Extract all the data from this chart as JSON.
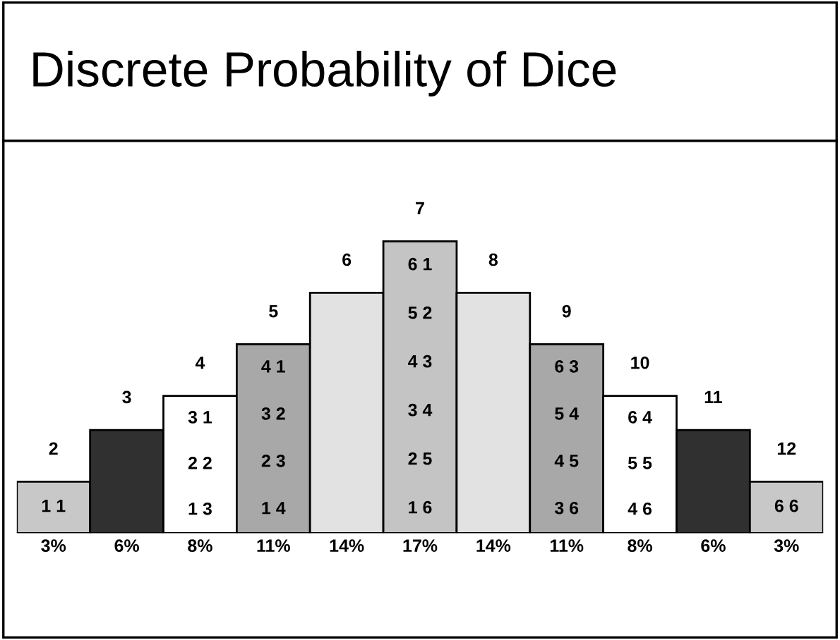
{
  "chart_data": {
    "type": "bar",
    "title": "Discrete Probability of Dice",
    "categories": [
      "2",
      "3",
      "4",
      "5",
      "6",
      "7",
      "8",
      "9",
      "10",
      "11",
      "12"
    ],
    "values": [
      3,
      6,
      8,
      11,
      14,
      17,
      14,
      11,
      8,
      6,
      3
    ],
    "value_labels": [
      "3%",
      "6%",
      "8%",
      "11%",
      "14%",
      "17%",
      "14%",
      "11%",
      "8%",
      "6%",
      "3%"
    ],
    "colors": [
      "#c8c8c8",
      "#303030",
      "#ffffff",
      "#a8a8a8",
      "#e2e2e2",
      "#c4c4c4",
      "#e2e2e2",
      "#a8a8a8",
      "#ffffff",
      "#303030",
      "#c8c8c8"
    ],
    "annotations": [
      "1 1",
      "1 3",
      "2 2",
      "3 1",
      "1 4",
      "2 3",
      "3 2",
      "4 1",
      "1 6",
      "2 5",
      "3 4",
      "4 3",
      "5 2",
      "6 1",
      "3 6",
      "4 5",
      "5 4",
      "6 3",
      "4 6",
      "5 5",
      "6 4",
      "6 6"
    ]
  }
}
